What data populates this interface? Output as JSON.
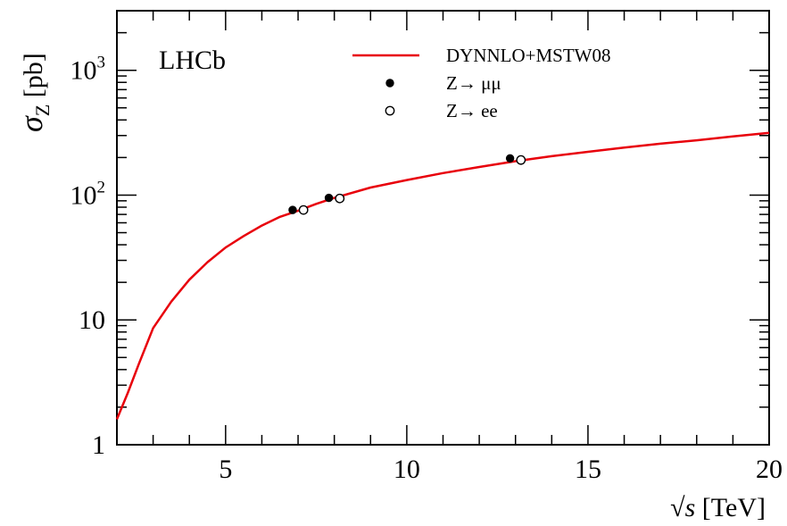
{
  "chart_data": {
    "type": "line",
    "xlabel_sqrt": "√",
    "xlabel_var": "s",
    "xlabel_unit": " [TeV]",
    "ylabel_sigma": "σ",
    "ylabel_sub": "Z",
    "ylabel_unit": " [pb]",
    "annotation": "LHCb",
    "xlim": [
      2,
      20
    ],
    "ylim": [
      1,
      3000
    ],
    "yscale": "log",
    "grid": false,
    "legend_position": "top-right",
    "x_ticks": [
      {
        "value": 5,
        "label": "5"
      },
      {
        "value": 10,
        "label": "10"
      },
      {
        "value": 15,
        "label": "15"
      },
      {
        "value": 20,
        "label": "20"
      }
    ],
    "y_ticks": [
      {
        "value": 1,
        "label": "1"
      },
      {
        "value": 10,
        "label": "10"
      },
      {
        "value": 100,
        "base": "10",
        "exp": "2"
      },
      {
        "value": 1000,
        "base": "10",
        "exp": "3"
      }
    ],
    "series": [
      {
        "name": "DYNNLO+MSTW08",
        "kind": "curve",
        "color": "#e8000b",
        "x": [
          2.0,
          2.3,
          2.6,
          3.0,
          3.5,
          4.0,
          4.5,
          5.0,
          5.5,
          6.0,
          6.5,
          7.0,
          7.5,
          8.0,
          9.0,
          10.0,
          11.0,
          12.0,
          13.0,
          14.0,
          15.0,
          16.0,
          17.0,
          18.0,
          19.0,
          20.0
        ],
        "y": [
          1.6,
          2.6,
          4.4,
          8.6,
          14,
          21,
          29,
          38,
          47,
          57,
          67,
          75,
          85,
          95,
          115,
          132,
          150,
          168,
          187,
          205,
          222,
          240,
          258,
          275,
          295,
          315
        ]
      },
      {
        "name": "Z→ μμ",
        "kind": "points",
        "marker": "filled-circle",
        "color": "#000000",
        "x": [
          6.85,
          7.85,
          12.85
        ],
        "y": [
          76,
          95,
          197
        ]
      },
      {
        "name": "Z→ ee",
        "kind": "points",
        "marker": "open-circle",
        "color": "#000000",
        "x": [
          7.15,
          8.15,
          13.15
        ],
        "y": [
          76,
          94,
          191
        ]
      }
    ]
  }
}
